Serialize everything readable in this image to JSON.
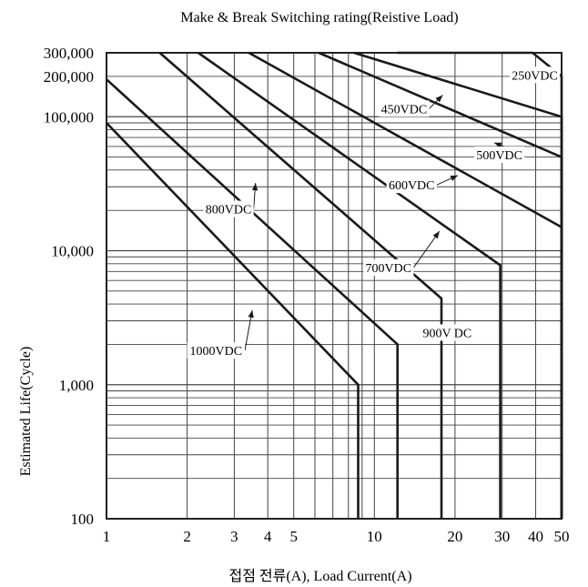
{
  "chart_data": {
    "type": "line",
    "title": "Make & Break Switching rating(Reistive Load)",
    "xlabel": "접점 전류(A), Load Current(A)",
    "ylabel": "Estimated Life(Cycle)",
    "x_scale": "log",
    "y_scale": "log",
    "xlim": [
      1,
      50
    ],
    "ylim": [
      100,
      300000
    ],
    "grid": true,
    "x_ticks": [
      {
        "value": 1,
        "label": "1"
      },
      {
        "value": 2,
        "label": "2"
      },
      {
        "value": 3,
        "label": "3"
      },
      {
        "value": 4,
        "label": "4"
      },
      {
        "value": 5,
        "label": "5"
      },
      {
        "value": 10,
        "label": "10"
      },
      {
        "value": 20,
        "label": "20"
      },
      {
        "value": 30,
        "label": "30"
      },
      {
        "value": 40,
        "label": "40"
      },
      {
        "value": 50,
        "label": "50"
      }
    ],
    "y_ticks": [
      {
        "value": 100,
        "label": "100"
      },
      {
        "value": 1000,
        "label": "1,000"
      },
      {
        "value": 10000,
        "label": "10,000"
      },
      {
        "value": 100000,
        "label": "100,000"
      },
      {
        "value": 200000,
        "label": "200,000"
      },
      {
        "value": 300000,
        "label": "300,000"
      }
    ],
    "series": [
      {
        "name": "250VDC",
        "points": [
          [
            12.2,
            300000
          ],
          [
            39,
            300000
          ],
          [
            50,
            200000
          ],
          [
            50,
            100
          ]
        ],
        "label_at": [
          32.0,
          205000
        ],
        "arrow_to": [
          45.0,
          220000
        ]
      },
      {
        "name": "450VDC",
        "points": [
          [
            8.4,
            300000
          ],
          [
            50,
            100000
          ],
          [
            50,
            100
          ]
        ],
        "label_at": [
          10.4,
          115000
        ],
        "arrow_to": [
          18.0,
          145000
        ]
      },
      {
        "name": "500VDC",
        "points": [
          [
            6.2,
            300000
          ],
          [
            50,
            50000
          ],
          [
            50,
            100
          ]
        ],
        "label_at": [
          23.6,
          52000
        ],
        "arrow_to": [
          28.0,
          64000
        ]
      },
      {
        "name": "600VDC",
        "points": [
          [
            3.4,
            300000
          ],
          [
            50,
            15000
          ],
          [
            50,
            100
          ]
        ],
        "label_at": [
          11.1,
          31000
        ],
        "arrow_to": [
          20.5,
          36500
        ]
      },
      {
        "name": "700VDC",
        "points": [
          [
            2.2,
            300000
          ],
          [
            29.5,
            7800
          ],
          [
            29.5,
            100
          ]
        ],
        "label_at": [
          9.1,
          7500
        ],
        "arrow_to": [
          17.5,
          14000
        ]
      },
      {
        "name": "800VDC",
        "points": [
          [
            1.58,
            300000
          ],
          [
            17.8,
            4400
          ],
          [
            17.8,
            100
          ]
        ],
        "label_at": [
          2.3,
          20500
        ],
        "arrow_to": [
          3.6,
          32000
        ]
      },
      {
        "name": "900V DC",
        "points": [
          [
            1,
            190000
          ],
          [
            12.2,
            2000
          ],
          [
            12.2,
            100
          ]
        ],
        "label_at": [
          14.6,
          2450
        ],
        "arrow_to": [
          17.6,
          2450
        ]
      },
      {
        "name": "1000VDC",
        "points": [
          [
            1,
            90000
          ],
          [
            8.7,
            1000
          ],
          [
            8.7,
            100
          ]
        ],
        "label_at": [
          2.0,
          1800
        ],
        "arrow_to": [
          3.5,
          3600
        ]
      }
    ]
  }
}
